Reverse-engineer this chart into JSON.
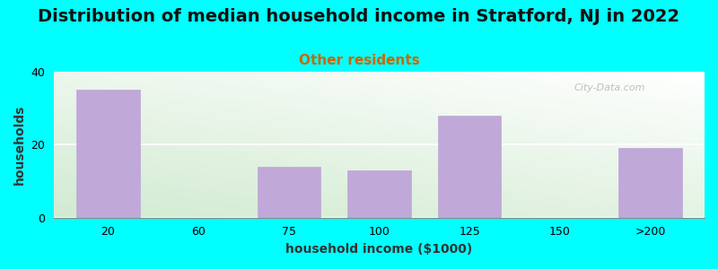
{
  "title": "Distribution of median household income in Stratford, NJ in 2022",
  "subtitle": "Other residents",
  "xlabel": "household income ($1000)",
  "ylabel": "households",
  "background_color": "#00ffff",
  "bar_color": "#c0a8d8",
  "bar_edgecolor": "#c0a8d8",
  "categories": [
    "20",
    "60",
    "75",
    "100",
    "125",
    "150",
    ">200"
  ],
  "values": [
    35,
    0,
    14,
    13,
    28,
    0,
    19
  ],
  "ylim": [
    0,
    40
  ],
  "yticks": [
    0,
    20,
    40
  ],
  "title_fontsize": 14,
  "subtitle_fontsize": 11,
  "subtitle_color": "#cc6600",
  "axis_label_fontsize": 10,
  "tick_fontsize": 9,
  "watermark": "City-Data.com"
}
